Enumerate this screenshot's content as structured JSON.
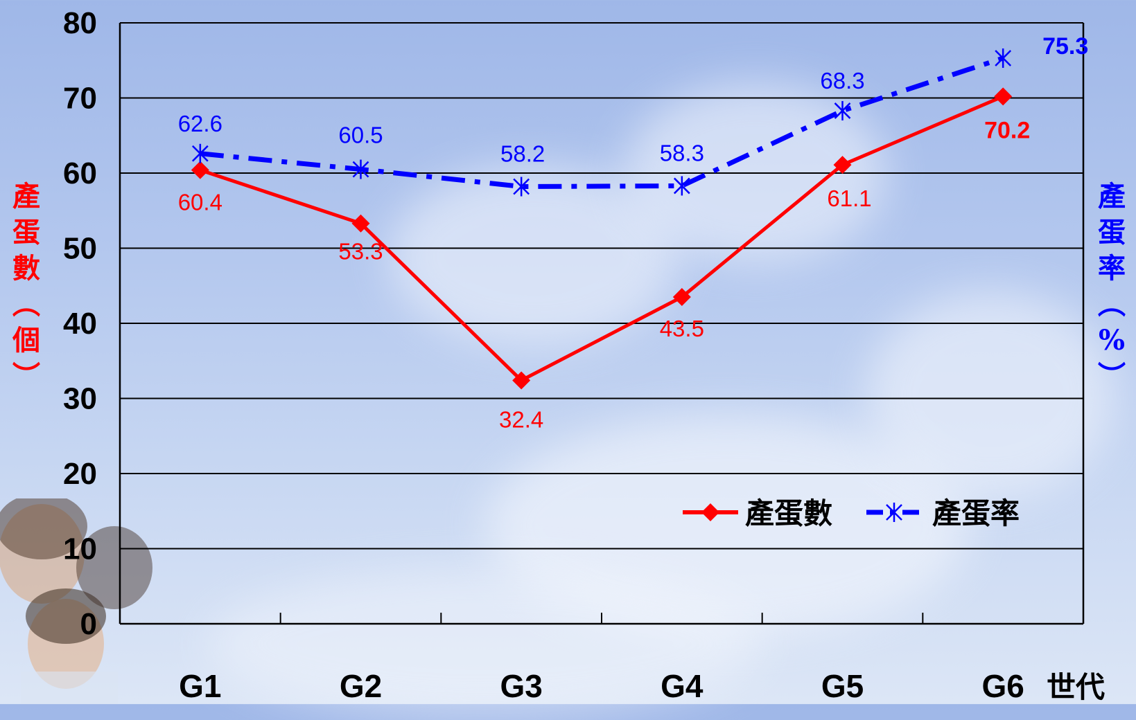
{
  "chart_data": {
    "type": "line",
    "categories": [
      "G1",
      "G2",
      "G3",
      "G4",
      "G5",
      "G6"
    ],
    "xlabel": "世代",
    "ylabel_left": "產蛋數（個）",
    "ylabel_right": "產蛋率（%）",
    "ylim": [
      0,
      80
    ],
    "yticks": [
      "0",
      "10",
      "20",
      "30",
      "40",
      "50",
      "60",
      "70",
      "80"
    ],
    "grid": true,
    "legend_position": "bottom-right",
    "series": [
      {
        "name": "產蛋數",
        "values": [
          60.4,
          53.3,
          32.4,
          43.5,
          61.1,
          70.2
        ],
        "labels": [
          "60.4",
          "53.3",
          "32.4",
          "43.5",
          "61.1",
          "70.2"
        ],
        "color": "#ff0000",
        "line": "solid",
        "marker": "diamond"
      },
      {
        "name": "產蛋率",
        "values": [
          62.6,
          60.5,
          58.2,
          58.3,
          68.3,
          75.3
        ],
        "labels": [
          "62.6",
          "60.5",
          "58.2",
          "58.3",
          "68.3",
          "75.3"
        ],
        "color": "#0000ff",
        "line": "dash-dot",
        "marker": "asterisk"
      }
    ]
  },
  "labels": {
    "left_axis_chars": [
      "產",
      "蛋",
      "數",
      "︵",
      "個",
      "︶"
    ],
    "right_axis_chars": [
      "產",
      "蛋",
      "率",
      "︵",
      "%",
      "︶"
    ]
  }
}
